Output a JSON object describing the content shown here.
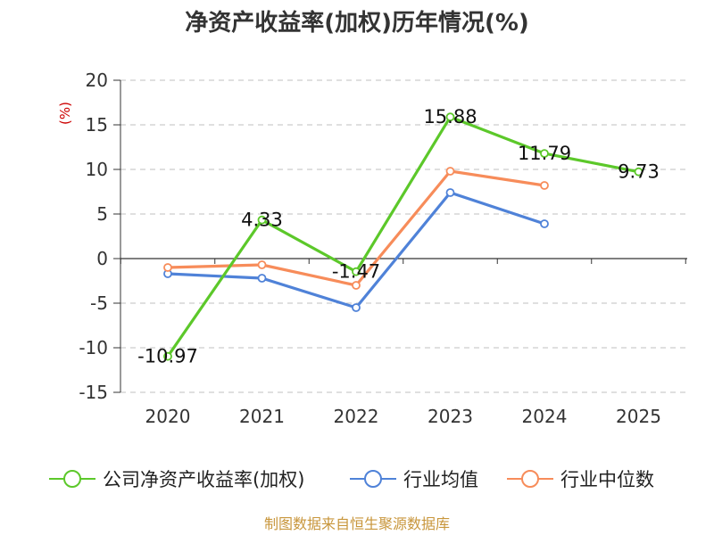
{
  "chart_data": {
    "type": "line",
    "title": "净资产收益率(加权)历年情况(%)",
    "ylabel": "(%)",
    "categories": [
      "2020",
      "2021",
      "2022",
      "2023",
      "2024",
      "2025"
    ],
    "ylim": [
      -15,
      20
    ],
    "yticks": [
      20,
      15,
      10,
      5,
      0,
      -5,
      -10,
      -15
    ],
    "grid": true,
    "legend_position": "bottom",
    "series": [
      {
        "name": "公司净资产收益率(加权)",
        "color": "#5cc82a",
        "values": [
          -10.97,
          4.33,
          -1.47,
          15.88,
          11.79,
          9.73
        ],
        "labels": [
          "-10.97",
          "4.33",
          "-1.47",
          "15.88",
          "11.79",
          "9.73"
        ]
      },
      {
        "name": "行业均值",
        "color": "#4f82d8",
        "values": [
          -1.7,
          -2.2,
          -5.5,
          7.4,
          3.9,
          null
        ]
      },
      {
        "name": "行业中位数",
        "color": "#f78c5a",
        "values": [
          -1.0,
          -0.7,
          -3.0,
          9.8,
          8.2,
          null
        ]
      }
    ]
  },
  "source": "制图数据来自恒生聚源数据库"
}
